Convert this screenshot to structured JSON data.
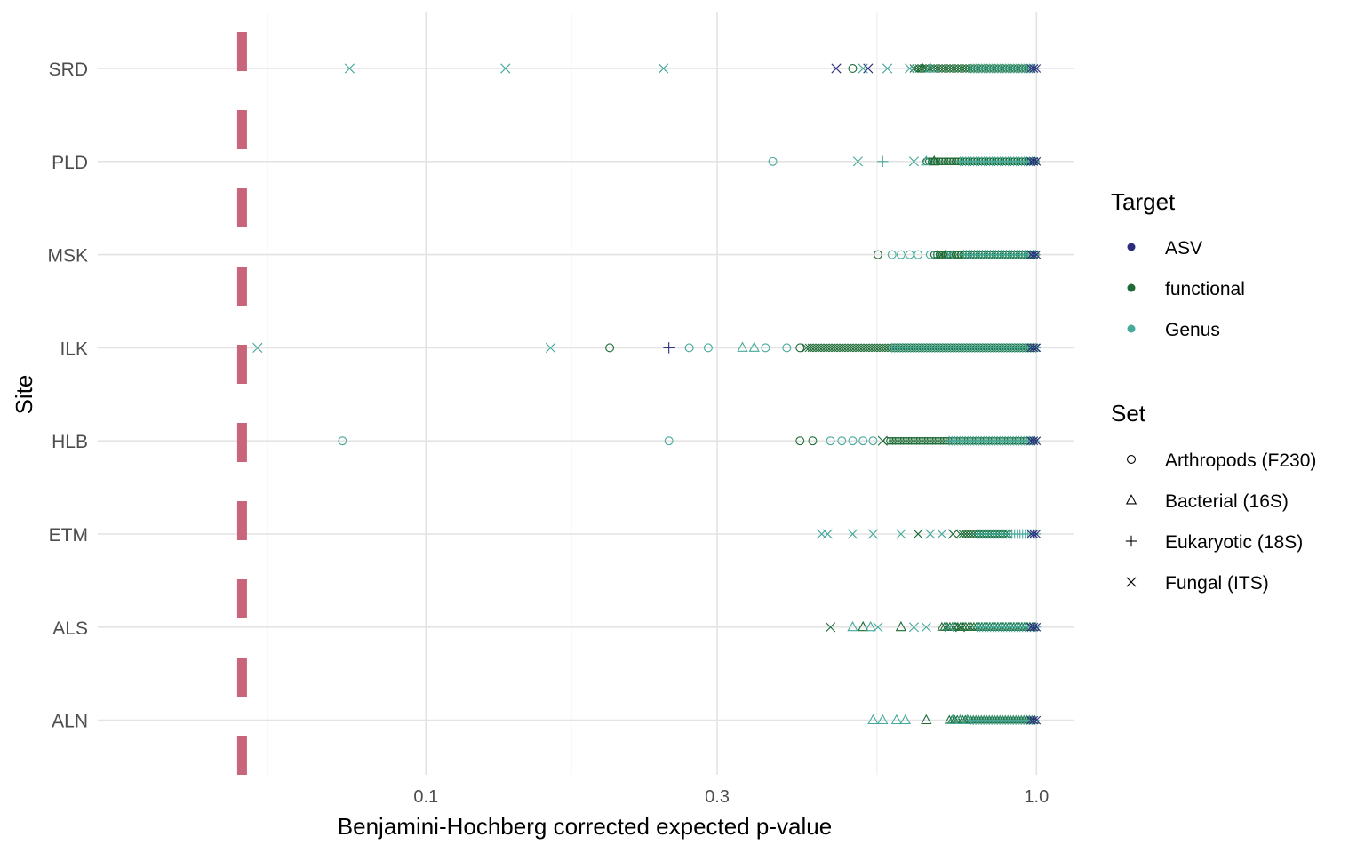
{
  "chart_data": {
    "type": "scatter",
    "xlabel": "Benjamini-Hochberg corrected expected p-value",
    "ylabel": "Site",
    "x_scale": "log10",
    "xlim": [
      0.03,
      1.15
    ],
    "x_ticks": [
      0.1,
      0.3,
      1.0
    ],
    "x_tick_labels": [
      "0.1",
      "0.3",
      "1.0"
    ],
    "categories": [
      "ALN",
      "ALS",
      "ETM",
      "HLB",
      "ILK",
      "MSK",
      "PLD",
      "SRD"
    ],
    "threshold": 0.05,
    "threshold_color": "#C8657A",
    "grid": true,
    "legend_position": "right",
    "legend": {
      "target_title": "Target",
      "set_title": "Set",
      "targets": [
        {
          "name": "ASV",
          "color": "#2D2D7E"
        },
        {
          "name": "functional",
          "color": "#1E6B36"
        },
        {
          "name": "Genus",
          "color": "#45A99B"
        }
      ],
      "sets": [
        {
          "name": "Arthropods (F230)",
          "shape": "circle"
        },
        {
          "name": "Bacterial (16S)",
          "shape": "triangle"
        },
        {
          "name": "Eukaryotic (18S)",
          "shape": "plus"
        },
        {
          "name": "Fungal (ITS)",
          "shape": "cross"
        }
      ]
    },
    "points": [
      {
        "site": "SRD",
        "x": 0.075,
        "target": "Genus",
        "set": "cross"
      },
      {
        "site": "SRD",
        "x": 0.135,
        "target": "Genus",
        "set": "cross"
      },
      {
        "site": "SRD",
        "x": 0.245,
        "target": "Genus",
        "set": "cross"
      },
      {
        "site": "SRD",
        "x": 0.47,
        "target": "ASV",
        "set": "cross"
      },
      {
        "site": "SRD",
        "x": 0.5,
        "target": "functional",
        "set": "circle"
      },
      {
        "site": "SRD",
        "x": 0.52,
        "target": "Genus",
        "set": "cross"
      },
      {
        "site": "SRD",
        "x": 0.53,
        "target": "ASV",
        "set": "cross"
      },
      {
        "site": "SRD",
        "x": 0.57,
        "target": "Genus",
        "set": "cross"
      },
      {
        "site": "SRD",
        "x": 0.62,
        "target": "Genus",
        "set": "cross"
      },
      {
        "site": "SRD",
        "x": 0.65,
        "target": "functional",
        "set": "triangle"
      },
      {
        "site": "SRD",
        "x": 0.67,
        "target": "Genus",
        "set": "triangle"
      },
      {
        "site": "PLD",
        "x": 0.37,
        "target": "Genus",
        "set": "circle"
      },
      {
        "site": "PLD",
        "x": 0.51,
        "target": "Genus",
        "set": "cross"
      },
      {
        "site": "PLD",
        "x": 0.56,
        "target": "Genus",
        "set": "plus"
      },
      {
        "site": "PLD",
        "x": 0.63,
        "target": "Genus",
        "set": "cross"
      },
      {
        "site": "PLD",
        "x": 0.66,
        "target": "Genus",
        "set": "triangle"
      },
      {
        "site": "PLD",
        "x": 0.68,
        "target": "functional",
        "set": "triangle"
      },
      {
        "site": "MSK",
        "x": 0.55,
        "target": "functional",
        "set": "circle"
      },
      {
        "site": "MSK",
        "x": 0.58,
        "target": "Genus",
        "set": "circle"
      },
      {
        "site": "MSK",
        "x": 0.6,
        "target": "Genus",
        "set": "circle"
      },
      {
        "site": "MSK",
        "x": 0.62,
        "target": "Genus",
        "set": "circle"
      },
      {
        "site": "MSK",
        "x": 0.64,
        "target": "Genus",
        "set": "circle"
      },
      {
        "site": "MSK",
        "x": 0.67,
        "target": "Genus",
        "set": "circle"
      },
      {
        "site": "MSK",
        "x": 0.7,
        "target": "functional",
        "set": "cross"
      },
      {
        "site": "MSK",
        "x": 0.72,
        "target": "Genus",
        "set": "cross"
      },
      {
        "site": "ILK",
        "x": 0.053,
        "target": "Genus",
        "set": "cross"
      },
      {
        "site": "ILK",
        "x": 0.16,
        "target": "Genus",
        "set": "cross"
      },
      {
        "site": "ILK",
        "x": 0.2,
        "target": "functional",
        "set": "circle"
      },
      {
        "site": "ILK",
        "x": 0.25,
        "target": "ASV",
        "set": "plus"
      },
      {
        "site": "ILK",
        "x": 0.27,
        "target": "Genus",
        "set": "circle"
      },
      {
        "site": "ILK",
        "x": 0.29,
        "target": "Genus",
        "set": "circle"
      },
      {
        "site": "ILK",
        "x": 0.33,
        "target": "Genus",
        "set": "triangle"
      },
      {
        "site": "ILK",
        "x": 0.345,
        "target": "Genus",
        "set": "triangle"
      },
      {
        "site": "ILK",
        "x": 0.36,
        "target": "Genus",
        "set": "circle"
      },
      {
        "site": "ILK",
        "x": 0.39,
        "target": "Genus",
        "set": "circle"
      },
      {
        "site": "ILK",
        "x": 0.41,
        "target": "functional",
        "set": "circle"
      },
      {
        "site": "HLB",
        "x": 0.073,
        "target": "Genus",
        "set": "circle"
      },
      {
        "site": "HLB",
        "x": 0.25,
        "target": "Genus",
        "set": "circle"
      },
      {
        "site": "HLB",
        "x": 0.41,
        "target": "functional",
        "set": "circle"
      },
      {
        "site": "HLB",
        "x": 0.43,
        "target": "functional",
        "set": "circle"
      },
      {
        "site": "HLB",
        "x": 0.46,
        "target": "Genus",
        "set": "circle"
      },
      {
        "site": "HLB",
        "x": 0.48,
        "target": "Genus",
        "set": "circle"
      },
      {
        "site": "HLB",
        "x": 0.5,
        "target": "Genus",
        "set": "circle"
      },
      {
        "site": "HLB",
        "x": 0.52,
        "target": "Genus",
        "set": "circle"
      },
      {
        "site": "HLB",
        "x": 0.54,
        "target": "Genus",
        "set": "circle"
      },
      {
        "site": "HLB",
        "x": 0.56,
        "target": "functional",
        "set": "cross"
      },
      {
        "site": "ETM",
        "x": 0.445,
        "target": "Genus",
        "set": "cross"
      },
      {
        "site": "ETM",
        "x": 0.455,
        "target": "Genus",
        "set": "cross"
      },
      {
        "site": "ETM",
        "x": 0.5,
        "target": "Genus",
        "set": "cross"
      },
      {
        "site": "ETM",
        "x": 0.54,
        "target": "Genus",
        "set": "cross"
      },
      {
        "site": "ETM",
        "x": 0.6,
        "target": "Genus",
        "set": "cross"
      },
      {
        "site": "ETM",
        "x": 0.64,
        "target": "functional",
        "set": "cross"
      },
      {
        "site": "ETM",
        "x": 0.67,
        "target": "Genus",
        "set": "cross"
      },
      {
        "site": "ETM",
        "x": 0.7,
        "target": "Genus",
        "set": "cross"
      },
      {
        "site": "ETM",
        "x": 0.73,
        "target": "functional",
        "set": "cross"
      },
      {
        "site": "ALS",
        "x": 0.46,
        "target": "functional",
        "set": "cross"
      },
      {
        "site": "ALS",
        "x": 0.5,
        "target": "Genus",
        "set": "triangle"
      },
      {
        "site": "ALS",
        "x": 0.52,
        "target": "functional",
        "set": "triangle"
      },
      {
        "site": "ALS",
        "x": 0.535,
        "target": "Genus",
        "set": "triangle"
      },
      {
        "site": "ALS",
        "x": 0.55,
        "target": "Genus",
        "set": "cross"
      },
      {
        "site": "ALS",
        "x": 0.6,
        "target": "functional",
        "set": "triangle"
      },
      {
        "site": "ALS",
        "x": 0.63,
        "target": "Genus",
        "set": "cross"
      },
      {
        "site": "ALS",
        "x": 0.66,
        "target": "Genus",
        "set": "cross"
      },
      {
        "site": "ALS",
        "x": 0.72,
        "target": "Genus",
        "set": "cross"
      },
      {
        "site": "ALS",
        "x": 0.75,
        "target": "functional",
        "set": "cross"
      },
      {
        "site": "ALN",
        "x": 0.54,
        "target": "Genus",
        "set": "triangle"
      },
      {
        "site": "ALN",
        "x": 0.56,
        "target": "Genus",
        "set": "triangle"
      },
      {
        "site": "ALN",
        "x": 0.59,
        "target": "Genus",
        "set": "triangle"
      },
      {
        "site": "ALN",
        "x": 0.61,
        "target": "Genus",
        "set": "triangle"
      },
      {
        "site": "ALN",
        "x": 0.66,
        "target": "functional",
        "set": "triangle"
      },
      {
        "site": "ALN",
        "x": 0.73,
        "target": "Genus",
        "set": "triangle"
      },
      {
        "site": "ALN",
        "x": 0.75,
        "target": "Genus",
        "set": "triangle"
      },
      {
        "site": "ALN",
        "x": 0.77,
        "target": "Genus",
        "set": "triangle"
      }
    ],
    "dense_ranges": [
      {
        "site": "SRD",
        "from": 0.63,
        "to": 1.0,
        "target": "functional",
        "set": "cross"
      },
      {
        "site": "SRD",
        "from": 0.78,
        "to": 1.0,
        "target": "Genus",
        "set": "plus"
      },
      {
        "site": "SRD",
        "from": 0.98,
        "to": 1.0,
        "target": "ASV",
        "set": "cross"
      },
      {
        "site": "PLD",
        "from": 0.66,
        "to": 1.0,
        "target": "functional",
        "set": "circle"
      },
      {
        "site": "PLD",
        "from": 0.75,
        "to": 1.0,
        "target": "Genus",
        "set": "plus"
      },
      {
        "site": "PLD",
        "from": 0.98,
        "to": 1.0,
        "target": "ASV",
        "set": "cross"
      },
      {
        "site": "MSK",
        "from": 0.68,
        "to": 1.0,
        "target": "functional",
        "set": "circle"
      },
      {
        "site": "MSK",
        "from": 0.76,
        "to": 1.0,
        "target": "Genus",
        "set": "plus"
      },
      {
        "site": "MSK",
        "from": 0.98,
        "to": 1.0,
        "target": "ASV",
        "set": "cross"
      },
      {
        "site": "ILK",
        "from": 0.42,
        "to": 1.0,
        "target": "functional",
        "set": "cross"
      },
      {
        "site": "ILK",
        "from": 0.58,
        "to": 1.0,
        "target": "Genus",
        "set": "plus"
      },
      {
        "site": "ILK",
        "from": 0.98,
        "to": 1.0,
        "target": "ASV",
        "set": "cross"
      },
      {
        "site": "HLB",
        "from": 0.57,
        "to": 1.0,
        "target": "functional",
        "set": "circle"
      },
      {
        "site": "HLB",
        "from": 0.72,
        "to": 1.0,
        "target": "Genus",
        "set": "plus"
      },
      {
        "site": "HLB",
        "from": 0.98,
        "to": 1.0,
        "target": "ASV",
        "set": "cross"
      },
      {
        "site": "ETM",
        "from": 0.75,
        "to": 0.9,
        "target": "functional",
        "set": "cross"
      },
      {
        "site": "ETM",
        "from": 0.8,
        "to": 1.0,
        "target": "Genus",
        "set": "plus"
      },
      {
        "site": "ETM",
        "from": 0.98,
        "to": 1.0,
        "target": "ASV",
        "set": "cross"
      },
      {
        "site": "ALS",
        "from": 0.7,
        "to": 1.0,
        "target": "functional",
        "set": "triangle"
      },
      {
        "site": "ALS",
        "from": 0.8,
        "to": 1.0,
        "target": "Genus",
        "set": "plus"
      },
      {
        "site": "ALS",
        "from": 0.98,
        "to": 1.0,
        "target": "ASV",
        "set": "cross"
      },
      {
        "site": "ALN",
        "from": 0.72,
        "to": 1.0,
        "target": "functional",
        "set": "triangle"
      },
      {
        "site": "ALN",
        "from": 0.78,
        "to": 1.0,
        "target": "Genus",
        "set": "plus"
      },
      {
        "site": "ALN",
        "from": 0.98,
        "to": 1.0,
        "target": "ASV",
        "set": "cross"
      }
    ]
  }
}
